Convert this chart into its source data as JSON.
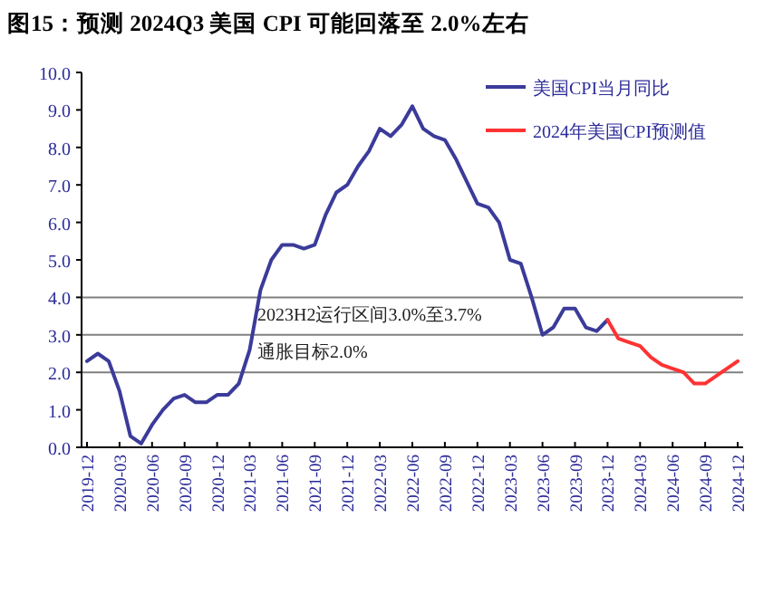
{
  "chart_data": {
    "type": "line",
    "title": "图15：预测 2024Q3 美国 CPI 可能回落至 2.0%左右",
    "categories": [
      "2019-12",
      null,
      null,
      "2020-03",
      null,
      null,
      "2020-06",
      null,
      null,
      "2020-09",
      null,
      null,
      "2020-12",
      null,
      null,
      "2021-03",
      null,
      null,
      "2021-06",
      null,
      null,
      "2021-09",
      null,
      null,
      "2021-12",
      null,
      null,
      "2022-03",
      null,
      null,
      "2022-06",
      null,
      null,
      "2022-09",
      null,
      null,
      "2022-12",
      null,
      null,
      "2023-03",
      null,
      null,
      "2023-06",
      null,
      null,
      "2023-09",
      null,
      null,
      "2023-12",
      null,
      null,
      "2024-03",
      null,
      null,
      "2024-06",
      null,
      null,
      "2024-09",
      null,
      null,
      "2024-12"
    ],
    "series": [
      {
        "name": "美国CPI当月同比",
        "color": "#3b3b9a",
        "values": [
          2.3,
          2.5,
          2.3,
          1.5,
          0.3,
          0.1,
          0.6,
          1.0,
          1.3,
          1.4,
          1.2,
          1.2,
          1.4,
          1.4,
          1.7,
          2.6,
          4.2,
          5.0,
          5.4,
          5.4,
          5.3,
          5.4,
          6.2,
          6.8,
          7.0,
          7.5,
          7.9,
          8.5,
          8.3,
          8.6,
          9.1,
          8.5,
          8.3,
          8.2,
          7.7,
          7.1,
          6.5,
          6.4,
          6.0,
          5.0,
          4.9,
          4.0,
          3.0,
          3.2,
          3.7,
          3.7,
          3.2,
          3.1,
          3.4,
          null,
          null,
          null,
          null,
          null,
          null,
          null,
          null,
          null,
          null,
          null,
          null
        ]
      },
      {
        "name": "2024年美国CPI预测值",
        "color": "#ff3333",
        "values": [
          null,
          null,
          null,
          null,
          null,
          null,
          null,
          null,
          null,
          null,
          null,
          null,
          null,
          null,
          null,
          null,
          null,
          null,
          null,
          null,
          null,
          null,
          null,
          null,
          null,
          null,
          null,
          null,
          null,
          null,
          null,
          null,
          null,
          null,
          null,
          null,
          null,
          null,
          null,
          null,
          null,
          null,
          null,
          null,
          null,
          null,
          null,
          null,
          3.4,
          2.9,
          2.8,
          2.7,
          2.4,
          2.2,
          2.1,
          2.0,
          1.7,
          1.7,
          1.9,
          2.1,
          2.3
        ]
      }
    ],
    "ylim": [
      0,
      10
    ],
    "yticks": [
      {
        "value": 0,
        "label": "0.0"
      },
      {
        "value": 1,
        "label": "1.0"
      },
      {
        "value": 2,
        "label": "2.0"
      },
      {
        "value": 3,
        "label": "3.0"
      },
      {
        "value": 4,
        "label": "4.0"
      },
      {
        "value": 5,
        "label": "5.0"
      },
      {
        "value": 6,
        "label": "6.0"
      },
      {
        "value": 7,
        "label": "7.0"
      },
      {
        "value": 8,
        "label": "8.0"
      },
      {
        "value": 9,
        "label": "9.0"
      },
      {
        "value": 10,
        "label": "10.0"
      }
    ],
    "ref_lines": [
      {
        "axis": "y",
        "value": 4,
        "label": null,
        "color": "#808080"
      },
      {
        "axis": "y",
        "value": 3,
        "label": "2023H2运行区间3.0%至3.7%",
        "color": "#808080"
      },
      {
        "axis": "y",
        "value": 2,
        "label": "通胀目标2.0%",
        "color": "#808080"
      }
    ],
    "grid": false,
    "legend": "top right",
    "marker": "none",
    "line_style": "solid"
  }
}
